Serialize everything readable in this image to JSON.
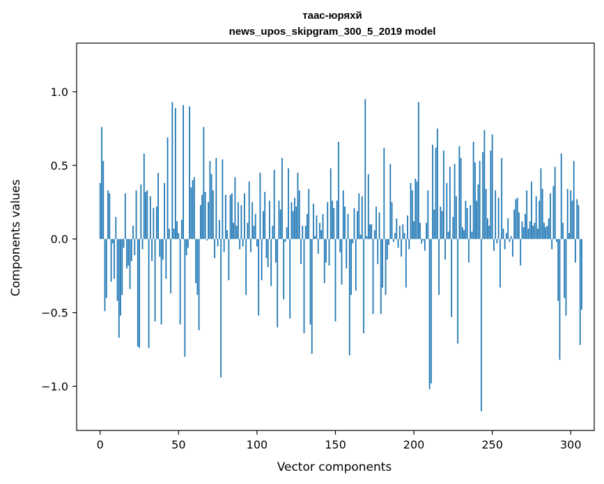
{
  "chart_data": {
    "type": "bar",
    "title_line1": "таас-юряхй",
    "title_line2": "news_upos_skipgram_300_5_2019 model",
    "xlabel": "Vector components",
    "ylabel": "Components values",
    "xlim": [
      -15,
      315
    ],
    "ylim": [
      -1.3,
      1.33
    ],
    "xticks": [
      0,
      50,
      100,
      150,
      200,
      250,
      300
    ],
    "xtick_labels": [
      "0",
      "50",
      "100",
      "150",
      "200",
      "250",
      "300"
    ],
    "yticks": [
      -1.0,
      -0.5,
      0.0,
      0.5,
      1.0
    ],
    "ytick_labels": [
      "−1.0",
      "−0.5",
      "0.0",
      "0.5",
      "1.0"
    ],
    "grid": false,
    "bar_color": "#1f77b4",
    "values": [
      0.38,
      0.76,
      0.53,
      -0.49,
      -0.4,
      0.33,
      0.31,
      -0.29,
      -0.03,
      -0.27,
      0.15,
      -0.42,
      -0.67,
      -0.52,
      -0.38,
      -0.06,
      0.31,
      -0.2,
      -0.18,
      -0.34,
      -0.15,
      0.09,
      -0.11,
      0.33,
      -0.73,
      -0.74,
      0.37,
      -0.07,
      0.58,
      0.32,
      0.33,
      -0.74,
      0.29,
      -0.15,
      0.21,
      -0.56,
      0.22,
      0.45,
      -0.12,
      -0.58,
      -0.14,
      0.38,
      -0.27,
      0.69,
      0.07,
      -0.37,
      0.93,
      0.07,
      0.89,
      0.12,
      0.04,
      -0.58,
      0.13,
      0.91,
      -0.8,
      -0.11,
      -0.06,
      0.9,
      0.35,
      0.4,
      0.42,
      -0.3,
      -0.38,
      -0.62,
      0.23,
      0.3,
      0.76,
      0.32,
      -0.01,
      0.25,
      0.53,
      0.44,
      0.33,
      -0.13,
      0.55,
      -0.05,
      0.13,
      -0.94,
      0.54,
      -0.09,
      0.3,
      0.06,
      -0.28,
      0.3,
      0.31,
      0.11,
      0.42,
      0.09,
      0.25,
      -0.07,
      0.23,
      -0.05,
      0.31,
      -0.38,
      0.11,
      0.39,
      -0.09,
      0.25,
      0.09,
      0.17,
      -0.05,
      -0.52,
      0.45,
      -0.28,
      0.19,
      0.32,
      -0.13,
      -0.19,
      0.26,
      -0.32,
      0.09,
      0.47,
      -0.16,
      -0.6,
      0.26,
      0.2,
      0.55,
      -0.41,
      -0.02,
      0.08,
      0.48,
      -0.54,
      0.25,
      0.19,
      0.28,
      0.22,
      0.45,
      0.33,
      -0.17,
      0.09,
      -0.64,
      0.09,
      0.17,
      0.34,
      -0.58,
      -0.78,
      0.24,
      0.02,
      0.16,
      -0.1,
      0.11,
      0.06,
      0.17,
      -0.3,
      -0.16,
      0.25,
      -0.18,
      0.48,
      0.26,
      0.21,
      -0.56,
      0.26,
      0.66,
      -0.09,
      -0.31,
      0.33,
      0.22,
      -0.2,
      0.17,
      -0.79,
      -0.38,
      -0.03,
      0.21,
      -0.35,
      0.19,
      0.31,
      0.03,
      0.29,
      -0.64,
      0.95,
      0.02,
      0.44,
      0.1,
      0.1,
      -0.51,
      0.06,
      0.22,
      -0.17,
      0.18,
      -0.51,
      -0.33,
      0.62,
      -0.38,
      -0.14,
      -0.04,
      0.51,
      0.25,
      -0.02,
      0.04,
      0.14,
      -0.06,
      0.09,
      -0.12,
      0.1,
      0.04,
      -0.33,
      0.16,
      -0.07,
      0.38,
      0.33,
      0.12,
      0.41,
      0.39,
      0.93,
      0.11,
      -0.03,
      -0.01,
      -0.08,
      0.11,
      0.33,
      -1.02,
      -0.98,
      0.64,
      0.2,
      0.62,
      0.75,
      -0.38,
      0.22,
      0.19,
      0.6,
      -0.14,
      0.38,
      0.05,
      0.49,
      -0.53,
      0.15,
      0.51,
      0.29,
      -0.71,
      0.63,
      0.55,
      0.08,
      0.06,
      0.26,
      0.21,
      -0.16,
      0.23,
      0.05,
      0.66,
      0.52,
      0.26,
      0.37,
      0.53,
      -1.17,
      0.59,
      0.74,
      0.34,
      0.14,
      0.09,
      0.6,
      0.71,
      -0.08,
      0.33,
      -0.03,
      0.28,
      -0.33,
      0.55,
      0.07,
      -0.07,
      0.04,
      0.14,
      -0.02,
      0.02,
      -0.12,
      0.2,
      0.27,
      0.28,
      0.18,
      -0.18,
      0.12,
      0.08,
      0.17,
      0.33,
      0.07,
      0.12,
      0.39,
      0.09,
      0.11,
      0.29,
      0.07,
      0.26,
      0.48,
      0.34,
      0.11,
      0.08,
      0.09,
      0.14,
      0.31,
      -0.07,
      0.36,
      0.49,
      -0.02,
      -0.42,
      -0.82,
      0.58,
      0.11,
      -0.4,
      -0.52,
      0.34,
      0.04,
      0.33,
      0.26,
      0.53,
      -0.16,
      0.27,
      0.23,
      -0.72,
      -0.48
    ]
  }
}
